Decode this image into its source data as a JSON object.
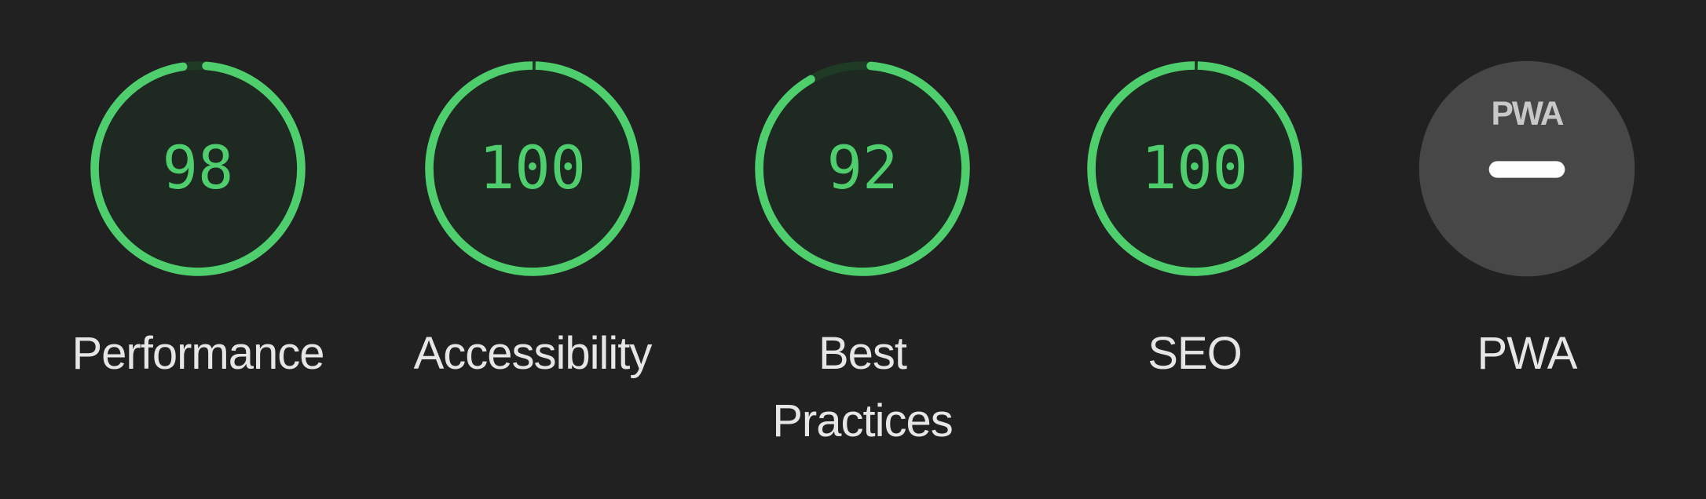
{
  "colors": {
    "background": "#212121",
    "pass": "#4fce6e",
    "pass_track": "#1f3a25",
    "pass_fill": "#1e2a21",
    "pwa_fill": "#474747",
    "pwa_logo": "#c8c8c8",
    "label": "#e6e6e6"
  },
  "gauges": [
    {
      "score": 98,
      "score_text": "98",
      "label": "Performance"
    },
    {
      "score": 100,
      "score_text": "100",
      "label": "Accessibility"
    },
    {
      "score": 92,
      "score_text": "92",
      "label": "Best Practices"
    },
    {
      "score": 100,
      "score_text": "100",
      "label": "SEO"
    }
  ],
  "pwa": {
    "logo_text": "PWA",
    "label": "PWA",
    "icon": "dash-icon"
  }
}
